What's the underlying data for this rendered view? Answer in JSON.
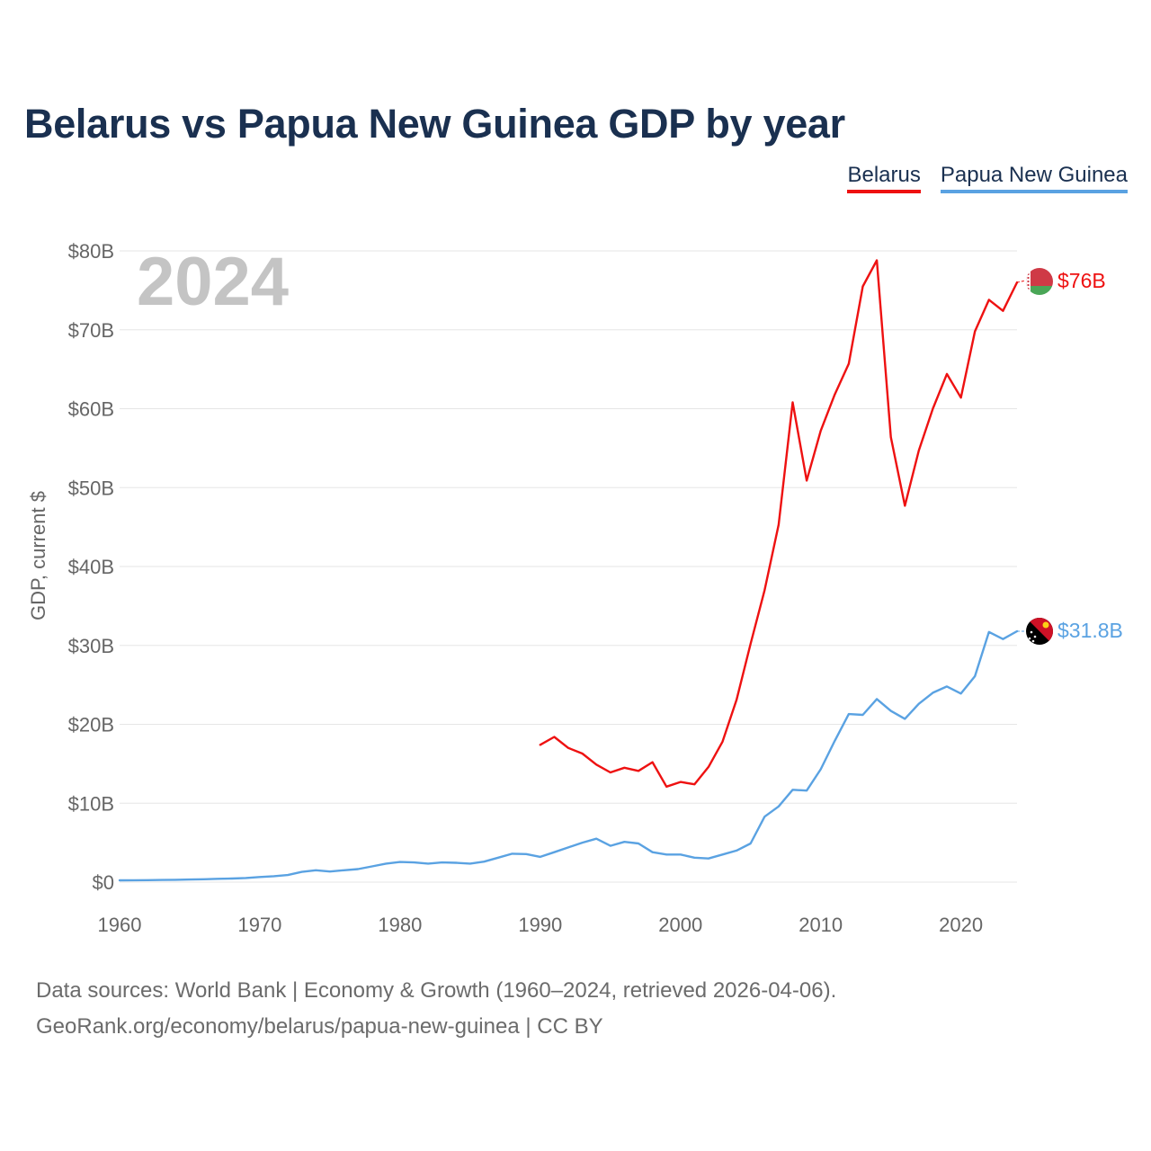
{
  "title": "Belarus vs Papua New Guinea GDP by year",
  "source": {
    "line1": "Data sources: World Bank | Economy & Growth (1960–2024, retrieved 2026-04-06).",
    "line2": "GeoRank.org/economy/belarus/papua-new-guinea | CC BY"
  },
  "chart_data": {
    "type": "line",
    "title": "Belarus vs Papua New Guinea GDP by year",
    "xlabel": "",
    "ylabel": "GDP, current $",
    "year_label": "2024",
    "xlim": [
      1960,
      2024
    ],
    "ylim": [
      0,
      80
    ],
    "unit": "billion USD",
    "x_ticks": [
      1960,
      1970,
      1980,
      1990,
      2000,
      2010,
      2020
    ],
    "y_ticks": [
      0,
      10,
      20,
      30,
      40,
      50,
      60,
      70,
      80
    ],
    "y_tick_labels": [
      "$0",
      "$10B",
      "$20B",
      "$30B",
      "$40B",
      "$50B",
      "$60B",
      "$70B",
      "$80B"
    ],
    "grid": true,
    "legend_position": "top-right",
    "series": [
      {
        "name": "Belarus",
        "color": "#ee1111",
        "end_label": "$76B",
        "x": [
          1990,
          1991,
          1992,
          1993,
          1994,
          1995,
          1996,
          1997,
          1998,
          1999,
          2000,
          2001,
          2002,
          2003,
          2004,
          2005,
          2006,
          2007,
          2008,
          2009,
          2010,
          2011,
          2012,
          2013,
          2014,
          2015,
          2016,
          2017,
          2018,
          2019,
          2020,
          2021,
          2022,
          2023,
          2024
        ],
        "values": [
          17.4,
          18.4,
          17.0,
          16.3,
          14.9,
          13.9,
          14.5,
          14.1,
          15.2,
          12.1,
          12.7,
          12.4,
          14.6,
          17.8,
          23.1,
          30.2,
          37.0,
          45.3,
          60.8,
          50.9,
          57.2,
          61.8,
          65.7,
          75.5,
          78.8,
          56.4,
          47.7,
          54.7,
          60.0,
          64.4,
          61.4,
          69.8,
          73.8,
          72.4,
          76.0
        ]
      },
      {
        "name": "Papua New Guinea",
        "color": "#5aa2e2",
        "end_label": "$31.8B",
        "x": [
          1960,
          1961,
          1962,
          1963,
          1964,
          1965,
          1966,
          1967,
          1968,
          1969,
          1970,
          1971,
          1972,
          1973,
          1974,
          1975,
          1976,
          1977,
          1978,
          1979,
          1980,
          1981,
          1982,
          1983,
          1984,
          1985,
          1986,
          1987,
          1988,
          1989,
          1990,
          1991,
          1992,
          1993,
          1994,
          1995,
          1996,
          1997,
          1998,
          1999,
          2000,
          2001,
          2002,
          2003,
          2004,
          2005,
          2006,
          2007,
          2008,
          2009,
          2010,
          2011,
          2012,
          2013,
          2014,
          2015,
          2016,
          2017,
          2018,
          2019,
          2020,
          2021,
          2022,
          2023,
          2024
        ],
        "values": [
          0.23,
          0.24,
          0.25,
          0.27,
          0.3,
          0.33,
          0.37,
          0.42,
          0.46,
          0.52,
          0.65,
          0.75,
          0.9,
          1.3,
          1.5,
          1.35,
          1.5,
          1.65,
          2.0,
          2.35,
          2.55,
          2.5,
          2.35,
          2.5,
          2.45,
          2.35,
          2.6,
          3.1,
          3.6,
          3.55,
          3.2,
          3.8,
          4.4,
          5.0,
          5.5,
          4.6,
          5.1,
          4.9,
          3.8,
          3.5,
          3.5,
          3.1,
          3.0,
          3.5,
          4.0,
          4.9,
          8.3,
          9.6,
          11.7,
          11.6,
          14.3,
          17.9,
          21.3,
          21.2,
          23.2,
          21.7,
          20.7,
          22.6,
          24.0,
          24.8,
          23.9,
          26.1,
          31.7,
          30.8,
          31.8
        ]
      }
    ]
  }
}
